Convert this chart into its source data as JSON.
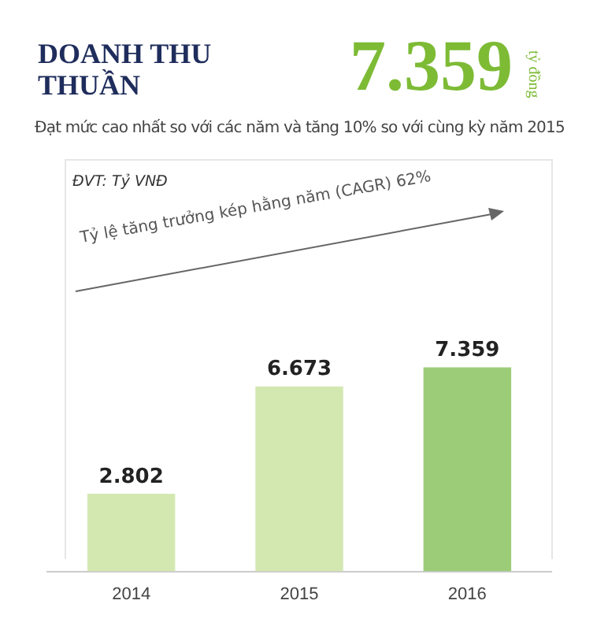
{
  "chart_data": {
    "type": "bar",
    "title": "DOANH THU THUẦN",
    "subtitle": "Đạt mức cao nhất so với các năm và tăng 10% so với cùng kỳ năm 2015",
    "annotations": [
      "7.359",
      "tỷ đồng",
      "ĐVT: Tỷ VNĐ",
      "Tỷ lệ tăng trưởng kép hằng năm (CAGR) 62%"
    ],
    "categories": [
      "2014",
      "2015",
      "2016"
    ],
    "values": [
      2802,
      6673,
      7359
    ],
    "colors": [
      "#d3e8b1",
      "#d3e8b1",
      "#9ccc78"
    ],
    "value_labels": [
      "2.802",
      "6.673",
      "7.359"
    ],
    "grid": false
  }
}
